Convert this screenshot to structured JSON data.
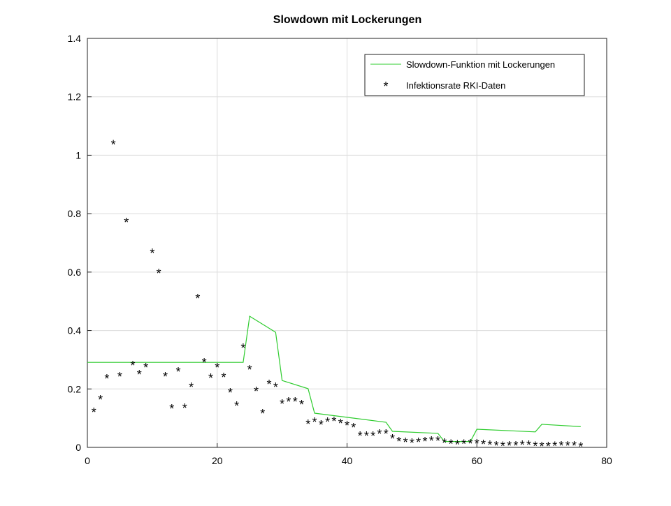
{
  "chart_data": {
    "type": "line+scatter",
    "title": "Slowdown mit Lockerungen",
    "xlabel": "",
    "ylabel": "",
    "xlim": [
      0,
      80
    ],
    "ylim": [
      0,
      1.4
    ],
    "xticks": [
      0,
      20,
      40,
      60,
      80
    ],
    "yticks": [
      0,
      0.2,
      0.4,
      0.6,
      0.8,
      1,
      1.2,
      1.4
    ],
    "grid": true,
    "legend_position": "top-right",
    "series": [
      {
        "name": "Slowdown-Funktion mit Lockerungen",
        "kind": "line",
        "color": "#2ecc2e",
        "x": [
          0,
          24,
          25,
          29,
          30,
          34,
          35,
          46,
          47,
          54,
          55,
          59,
          60,
          69,
          70,
          76
        ],
        "y": [
          0.291,
          0.291,
          0.449,
          0.394,
          0.229,
          0.201,
          0.117,
          0.086,
          0.055,
          0.048,
          0.02,
          0.02,
          0.062,
          0.053,
          0.079,
          0.071
        ]
      },
      {
        "name": "Infektionsrate RKI-Daten",
        "kind": "scatter",
        "marker": "*",
        "color": "#000000",
        "x": [
          1,
          2,
          3,
          4,
          5,
          6,
          7,
          8,
          9,
          10,
          11,
          12,
          13,
          14,
          15,
          16,
          17,
          18,
          19,
          20,
          21,
          22,
          23,
          24,
          25,
          26,
          27,
          28,
          29,
          30,
          31,
          32,
          33,
          34,
          35,
          36,
          37,
          38,
          39,
          40,
          41,
          42,
          43,
          44,
          45,
          46,
          47,
          48,
          49,
          50,
          51,
          52,
          53,
          54,
          55,
          56,
          57,
          58,
          59,
          60,
          61,
          62,
          63,
          64,
          65,
          66,
          67,
          68,
          69,
          70,
          71,
          72,
          73,
          74,
          75,
          76
        ],
        "y": [
          0.124,
          0.167,
          0.239,
          1.04,
          0.246,
          0.774,
          0.284,
          0.253,
          0.277,
          0.669,
          0.6,
          0.246,
          0.136,
          0.263,
          0.139,
          0.21,
          0.514,
          0.294,
          0.241,
          0.277,
          0.244,
          0.191,
          0.146,
          0.344,
          0.27,
          0.196,
          0.119,
          0.22,
          0.21,
          0.153,
          0.16,
          0.16,
          0.15,
          0.084,
          0.091,
          0.081,
          0.091,
          0.093,
          0.086,
          0.079,
          0.072,
          0.043,
          0.043,
          0.043,
          0.05,
          0.05,
          0.033,
          0.024,
          0.022,
          0.019,
          0.021,
          0.024,
          0.026,
          0.026,
          0.019,
          0.015,
          0.013,
          0.015,
          0.017,
          0.017,
          0.014,
          0.012,
          0.01,
          0.008,
          0.01,
          0.01,
          0.012,
          0.012,
          0.008,
          0.007,
          0.007,
          0.008,
          0.01,
          0.01,
          0.009,
          0.006
        ]
      }
    ]
  }
}
